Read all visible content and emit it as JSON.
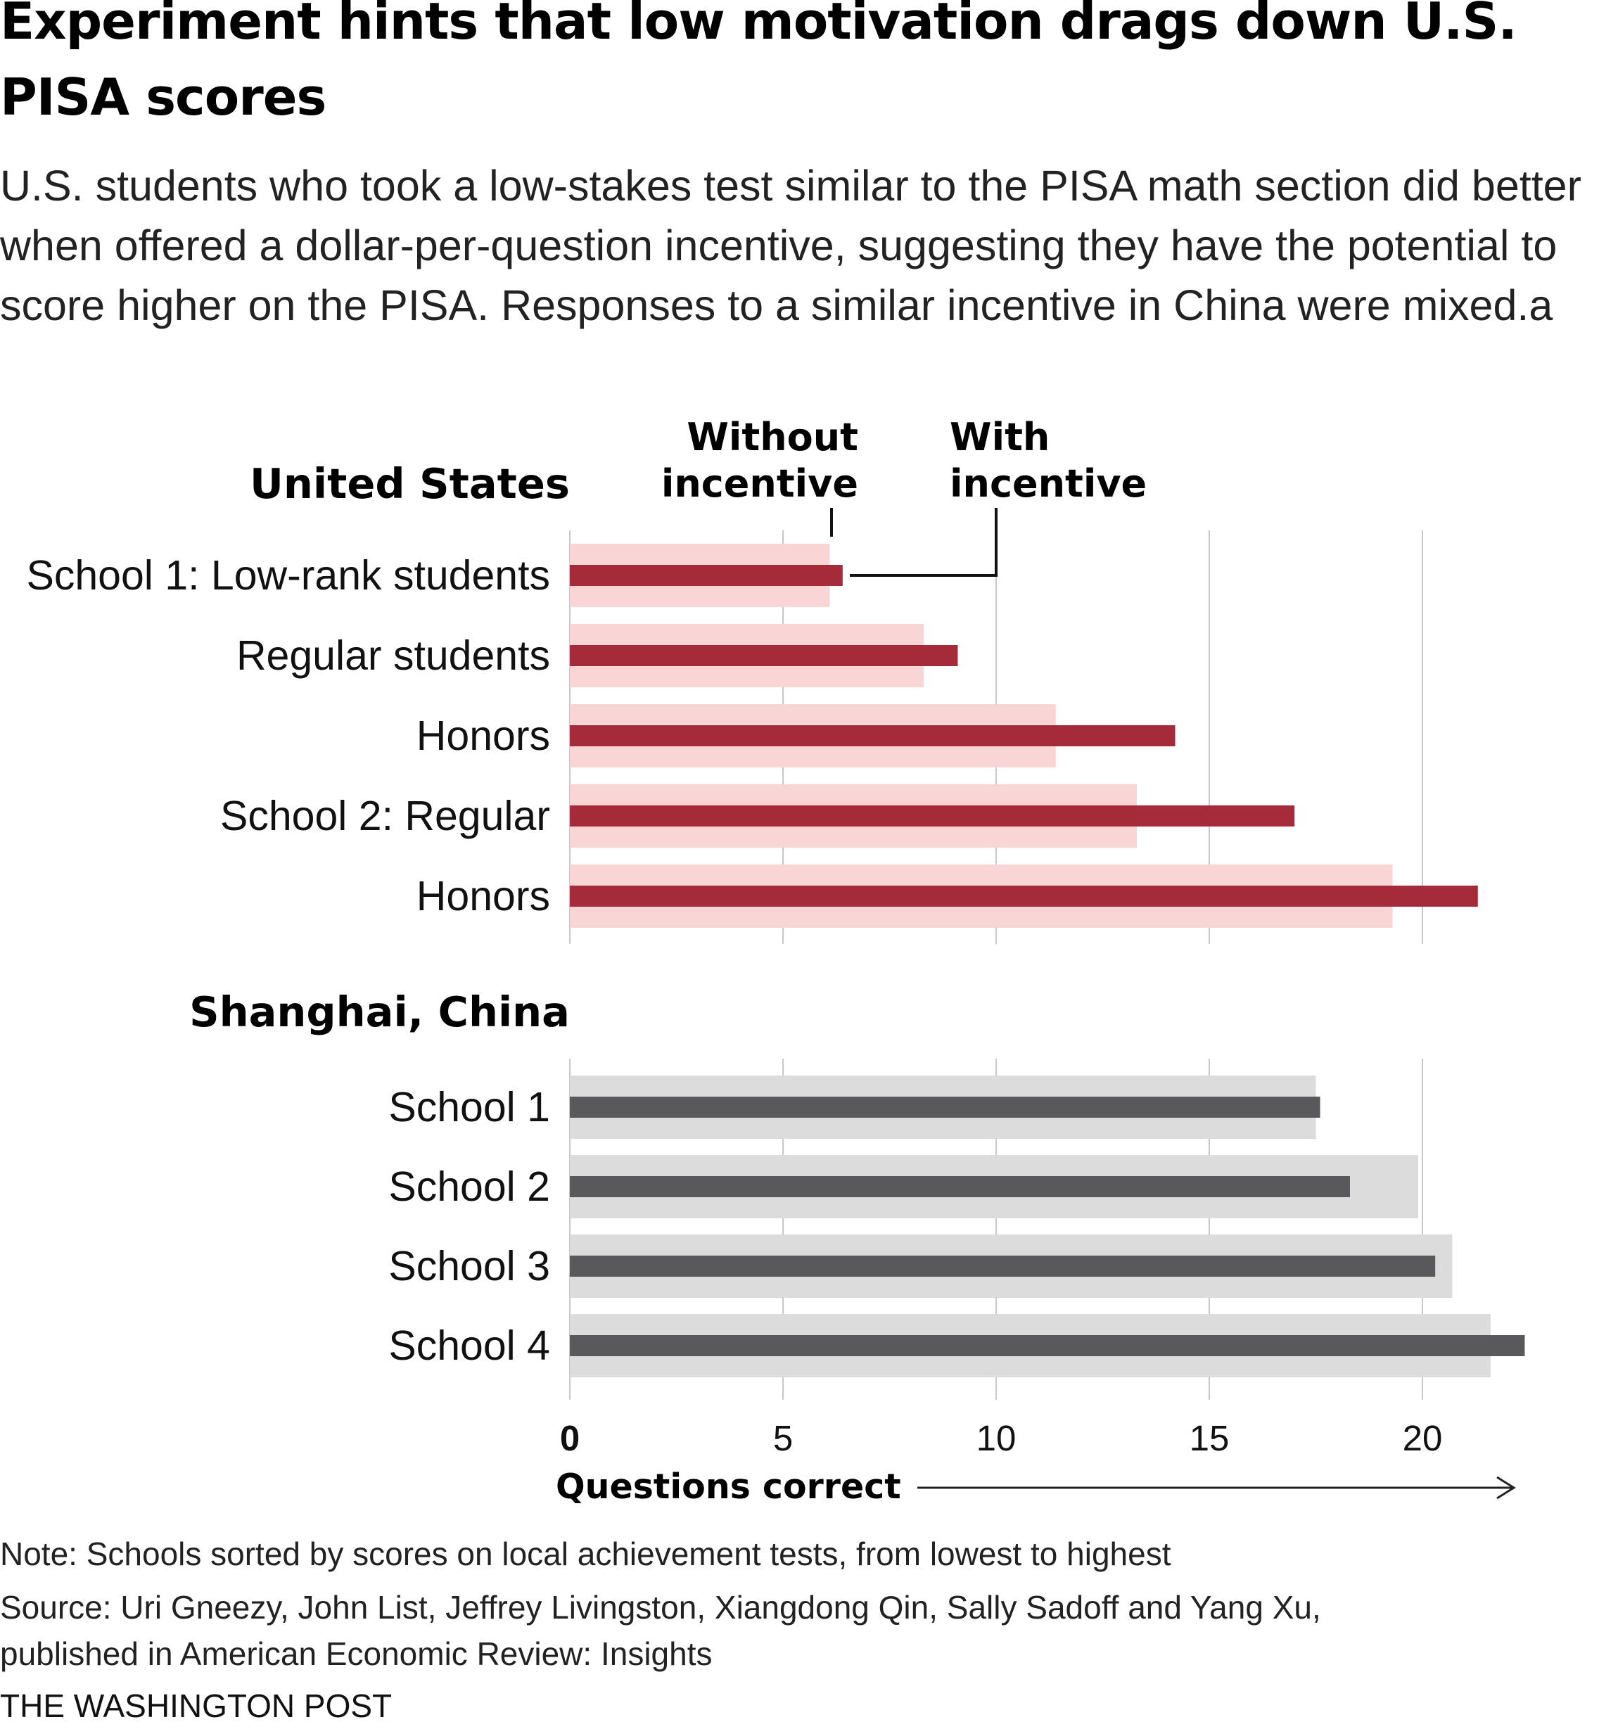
{
  "title": "Experiment hints that low motivation drags down U.S. PISA scores",
  "subtitle": "U.S. students who took a low-stakes test similar to the PISA math section did better when offered a dollar-per-question incentive, suggesting they have the potential to score higher on the PISA. Responses to a similar incentive in China were mixed.a",
  "legend": {
    "without": [
      "Without",
      "incentive"
    ],
    "with": [
      "With",
      "incentive"
    ]
  },
  "colors": {
    "us_without": "#f9d6d5",
    "us_with": "#a52a3a",
    "cn_without": "#dcdcdd",
    "cn_with": "#59595b",
    "grid": "#c8c8c8",
    "text": "#111111"
  },
  "chart_data": [
    {
      "type": "bar",
      "orientation": "horizontal",
      "panel_title": "United States",
      "categories": [
        "School 1: Low-rank students",
        "Regular students",
        "Honors",
        "School 2: Regular",
        "Honors"
      ],
      "series": [
        {
          "name": "Without incentive",
          "values": [
            6.1,
            8.3,
            11.4,
            13.3,
            19.3
          ]
        },
        {
          "name": "With incentive",
          "values": [
            6.4,
            9.1,
            14.2,
            17.0,
            21.3
          ]
        }
      ],
      "xlim": [
        0,
        22.5
      ],
      "grid": true
    },
    {
      "type": "bar",
      "orientation": "horizontal",
      "panel_title": "Shanghai, China",
      "categories": [
        "School 1",
        "School 2",
        "School 3",
        "School 4"
      ],
      "series": [
        {
          "name": "Without incentive",
          "values": [
            17.5,
            19.9,
            20.7,
            21.6
          ]
        },
        {
          "name": "With incentive",
          "values": [
            17.6,
            18.3,
            20.3,
            22.4
          ]
        }
      ],
      "xlim": [
        0,
        22.5
      ],
      "grid": true
    }
  ],
  "axis": {
    "ticks": [
      0,
      5,
      10,
      15,
      20
    ],
    "tick_labels": [
      "0",
      "5",
      "10",
      "15",
      "20"
    ],
    "label": "Questions correct"
  },
  "note": "Note: Schools sorted by scores on local achievement tests, from lowest to highest",
  "source_line1": "Source: Uri Gneezy, John List, Jeffrey Livingston, Xiangdong Qin, Sally Sadoff and Yang Xu,",
  "source_line2": "published in American Economic Review: Insights",
  "credit": "THE WASHINGTON POST"
}
